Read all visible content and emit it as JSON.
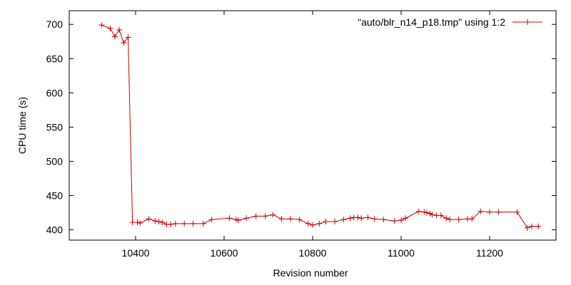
{
  "chart_data": {
    "type": "line",
    "xlabel": "Revision number",
    "ylabel": "CPU time (s)",
    "xlim": [
      10250,
      11350
    ],
    "ylim": [
      385,
      720
    ],
    "xticks": [
      10400,
      10600,
      10800,
      11000,
      11200
    ],
    "yticks": [
      400,
      450,
      500,
      550,
      600,
      650,
      700
    ],
    "grid": false,
    "legend_position": "top-right",
    "series": [
      {
        "name": "\"auto/blr_n14_p18.tmp\" using 1:2",
        "color": "#cc0000",
        "marker": "plus",
        "points": [
          [
            10323,
            699
          ],
          [
            10343,
            694
          ],
          [
            10353,
            682
          ],
          [
            10363,
            692
          ],
          [
            10373,
            673
          ],
          [
            10383,
            681
          ],
          [
            10393,
            411
          ],
          [
            10404,
            411
          ],
          [
            10410,
            410
          ],
          [
            10430,
            416
          ],
          [
            10444,
            413
          ],
          [
            10452,
            412
          ],
          [
            10460,
            411
          ],
          [
            10470,
            408
          ],
          [
            10479,
            408
          ],
          [
            10490,
            409
          ],
          [
            10510,
            409
          ],
          [
            10530,
            409
          ],
          [
            10553,
            409
          ],
          [
            10572,
            415
          ],
          [
            10612,
            417
          ],
          [
            10627,
            415
          ],
          [
            10632,
            414
          ],
          [
            10650,
            417
          ],
          [
            10672,
            420
          ],
          [
            10693,
            420
          ],
          [
            10710,
            422
          ],
          [
            10730,
            416
          ],
          [
            10750,
            416
          ],
          [
            10770,
            415
          ],
          [
            10790,
            409
          ],
          [
            10800,
            407
          ],
          [
            10815,
            409
          ],
          [
            10830,
            412
          ],
          [
            10850,
            412
          ],
          [
            10870,
            415
          ],
          [
            10885,
            417
          ],
          [
            10893,
            418
          ],
          [
            10902,
            418
          ],
          [
            10910,
            417
          ],
          [
            10925,
            418
          ],
          [
            10940,
            416
          ],
          [
            10960,
            415
          ],
          [
            10985,
            413
          ],
          [
            11000,
            414
          ],
          [
            11010,
            417
          ],
          [
            11040,
            427
          ],
          [
            11052,
            426
          ],
          [
            11058,
            425
          ],
          [
            11065,
            424
          ],
          [
            11070,
            422
          ],
          [
            11080,
            421
          ],
          [
            11090,
            421
          ],
          [
            11102,
            417
          ],
          [
            11110,
            415
          ],
          [
            11130,
            415
          ],
          [
            11150,
            416
          ],
          [
            11160,
            416
          ],
          [
            11180,
            427
          ],
          [
            11200,
            426
          ],
          [
            11220,
            426
          ],
          [
            11262,
            426
          ],
          [
            11285,
            403
          ],
          [
            11295,
            405
          ],
          [
            11310,
            405
          ]
        ]
      }
    ]
  }
}
